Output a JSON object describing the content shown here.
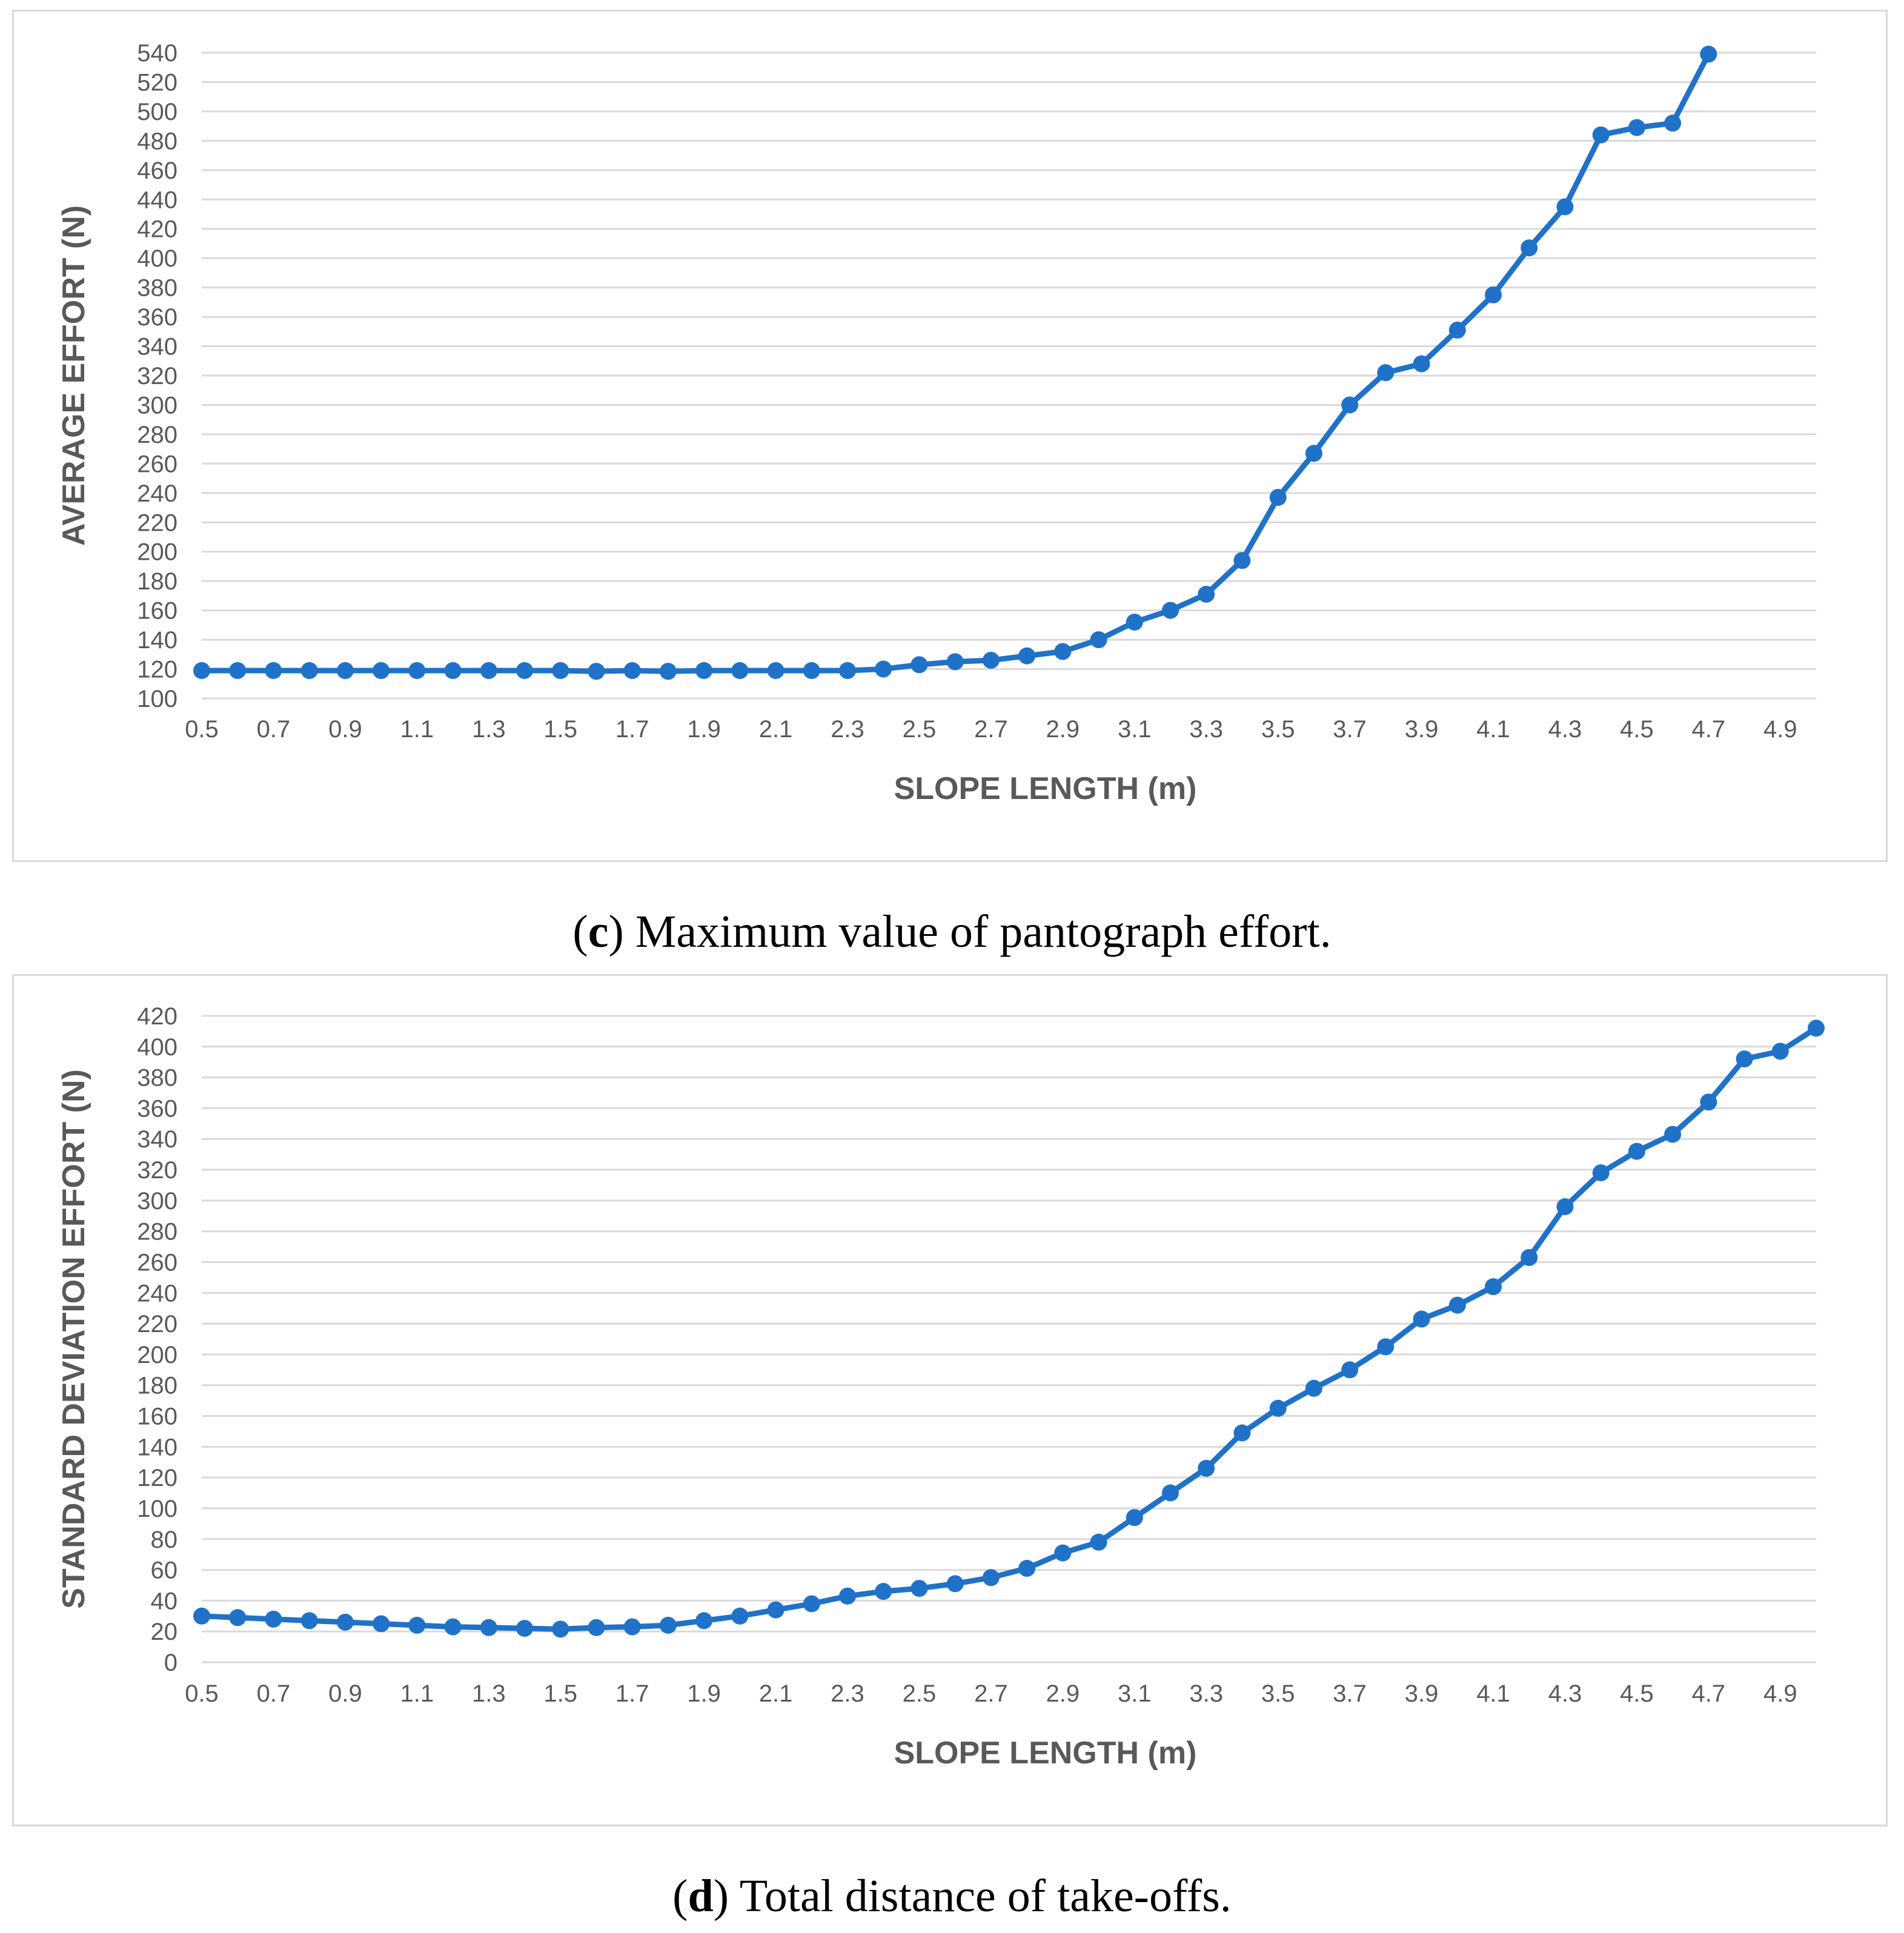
{
  "captions": [
    {
      "letter": "c",
      "open": "(",
      "close": ")",
      "text": " Maximum value of pantograph effort."
    },
    {
      "letter": "d",
      "open": "(",
      "close": ")",
      "text": " Total distance of take-offs."
    }
  ],
  "colors": {
    "line": "#1f72c8",
    "grid": "#d9d9d9",
    "text": "#595959",
    "border": "#d9d9d9"
  },
  "chart_data": [
    {
      "type": "line",
      "title": "",
      "xlabel": "SLOPE LENGTH (m)",
      "ylabel": "AVERAGE EFFORT (N)",
      "xlim": [
        0.5,
        5.0
      ],
      "ylim": [
        100,
        540
      ],
      "ystep": 20,
      "xtick_labels": [
        "0.5",
        "0.7",
        "0.9",
        "1.1",
        "1.3",
        "1.5",
        "1.7",
        "1.9",
        "2.1",
        "2.3",
        "2.5",
        "2.7",
        "2.9",
        "3.1",
        "3.3",
        "3.5",
        "3.7",
        "3.9",
        "4.1",
        "4.3",
        "4.5",
        "4.7",
        "4.9"
      ],
      "series": [
        {
          "name": "effort",
          "x": [
            0.5,
            0.6,
            0.7,
            0.8,
            0.9,
            1.0,
            1.1,
            1.2,
            1.3,
            1.4,
            1.5,
            1.6,
            1.7,
            1.8,
            1.9,
            2.0,
            2.1,
            2.2,
            2.3,
            2.4,
            2.5,
            2.6,
            2.7,
            2.8,
            2.9,
            3.0,
            3.1,
            3.2,
            3.3,
            3.4,
            3.5,
            3.6,
            3.7,
            3.8,
            3.9,
            4.0,
            4.1,
            4.2,
            4.3,
            4.4,
            4.5,
            4.6,
            4.7
          ],
          "values": [
            119,
            119,
            119,
            119,
            119,
            119,
            119,
            119,
            119,
            119,
            119,
            118.5,
            119,
            118.5,
            119,
            119,
            119,
            119,
            119,
            120,
            123,
            125,
            126,
            129,
            132,
            140,
            152,
            160,
            171,
            194,
            237,
            267,
            300,
            322,
            328,
            351,
            375,
            407,
            435,
            484,
            489,
            492,
            539
          ]
        }
      ]
    },
    {
      "type": "line",
      "title": "",
      "xlabel": "SLOPE LENGTH (m)",
      "ylabel": "STANDARD DEVIATION EFFORT (N)",
      "xlim": [
        0.5,
        5.0
      ],
      "ylim": [
        0,
        420
      ],
      "ystep": 20,
      "xtick_labels": [
        "0.5",
        "0.7",
        "0.9",
        "1.1",
        "1.3",
        "1.5",
        "1.7",
        "1.9",
        "2.1",
        "2.3",
        "2.5",
        "2.7",
        "2.9",
        "3.1",
        "3.3",
        "3.5",
        "3.7",
        "3.9",
        "4.1",
        "4.3",
        "4.5",
        "4.7",
        "4.9"
      ],
      "series": [
        {
          "name": "std-dev",
          "x": [
            0.5,
            0.6,
            0.7,
            0.8,
            0.9,
            1.0,
            1.1,
            1.2,
            1.3,
            1.4,
            1.5,
            1.6,
            1.7,
            1.8,
            1.9,
            2.0,
            2.1,
            2.2,
            2.3,
            2.4,
            2.5,
            2.6,
            2.7,
            2.8,
            2.9,
            3.0,
            3.1,
            3.2,
            3.3,
            3.4,
            3.5,
            3.6,
            3.7,
            3.8,
            3.9,
            4.0,
            4.1,
            4.2,
            4.3,
            4.4,
            4.5,
            4.6,
            4.7,
            4.8,
            4.9,
            5.0
          ],
          "values": [
            30,
            29,
            28,
            27,
            26,
            25,
            24,
            23,
            22.5,
            22,
            21.5,
            22.5,
            23,
            24,
            27,
            30,
            34,
            38,
            43,
            46,
            48,
            51,
            55,
            61,
            71,
            78,
            94,
            110,
            126,
            149,
            165,
            178,
            190,
            205,
            223,
            232,
            244,
            263,
            296,
            318,
            332,
            343,
            364,
            392,
            397,
            412
          ]
        }
      ]
    }
  ]
}
